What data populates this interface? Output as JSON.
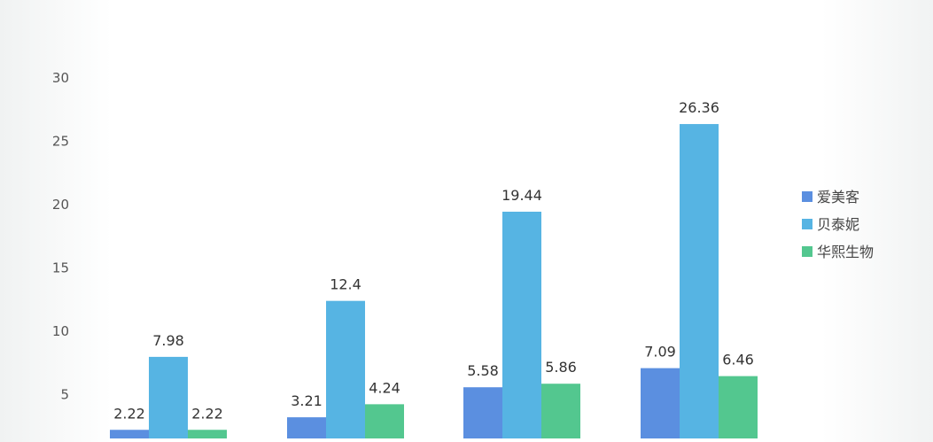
{
  "chart_data": {
    "type": "bar",
    "title": "",
    "xlabel": "",
    "ylabel": "",
    "ylim": [
      0,
      30
    ],
    "yticks": [
      5,
      10,
      15,
      20,
      25,
      30
    ],
    "grid": false,
    "legend_position": "right",
    "categories": [
      "",
      "",
      "",
      ""
    ],
    "series": [
      {
        "name": "爱美客",
        "color": "#5b8fe0",
        "values": [
          2.22,
          3.21,
          5.58,
          7.09
        ]
      },
      {
        "name": "贝泰妮",
        "color": "#56b4e3",
        "values": [
          7.98,
          12.4,
          19.44,
          26.36
        ]
      },
      {
        "name": "华熙生物",
        "color": "#53c78f",
        "values": [
          2.22,
          4.24,
          5.86,
          6.46
        ]
      }
    ]
  }
}
